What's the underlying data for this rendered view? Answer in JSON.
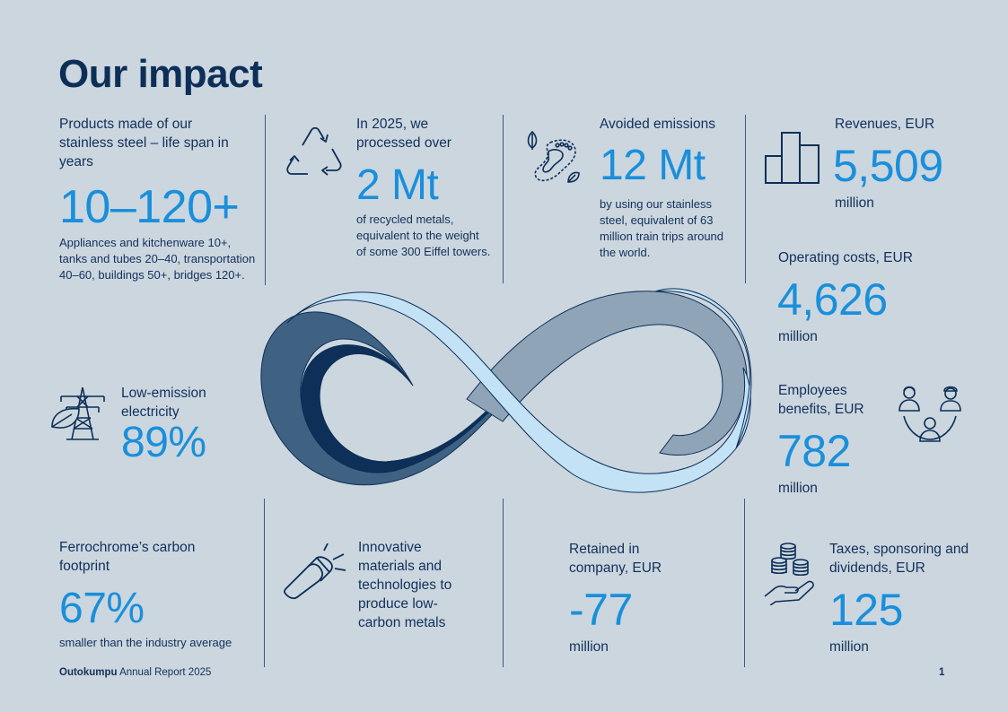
{
  "page": {
    "title": "Our impact"
  },
  "products": {
    "label": "Products made of our stainless steel – life span in years",
    "value": "10–120+",
    "desc": "Appliances and kitchenware 10+, tanks and tubes 20–40, transportation 40–60, buildings 50+, bridges 120+."
  },
  "recycled": {
    "label": "In 2025, we processed over",
    "value": "2 Mt",
    "desc": "of recycled metals, equivalent to the weight of some 300 Eiffel towers.",
    "icon": "recycle-icon"
  },
  "emissions": {
    "label": "Avoided emissions",
    "value": "12 Mt",
    "desc": "by using our stainless steel, equivalent of 63 million train trips around the world.",
    "icon": "footprint-icon"
  },
  "revenues": {
    "label": "Revenues, EUR",
    "value": "5,509",
    "unit": "million",
    "icon": "bar-chart-icon"
  },
  "operating": {
    "label": "Operating costs, EUR",
    "value": "4,626",
    "unit": "million"
  },
  "employees": {
    "label": "Employees benefits, EUR",
    "value": "782",
    "unit": "million",
    "icon": "people-icon"
  },
  "electricity": {
    "label": "Low-emission electricity",
    "value": "89%",
    "icon": "power-pylon-icon"
  },
  "ferrochrome": {
    "label": "Ferrochrome’s carbon footprint",
    "value": "67%",
    "desc": "smaller than the industry average"
  },
  "innovative": {
    "label": "Innovative materials and technologies to produce low-carbon metals",
    "icon": "flashlight-icon"
  },
  "retained": {
    "label": "Retained in company, EUR",
    "value": "-77",
    "unit": "million"
  },
  "taxes": {
    "label": "Taxes, sponsoring and dividends, EUR",
    "value": "125",
    "unit": "million",
    "icon": "coins-hand-icon"
  },
  "footer": {
    "brand": "Outokumpu",
    "text": " Annual Report 2025",
    "page": "1"
  },
  "colors": {
    "background": "#cbd6df",
    "accent": "#1a8fdb",
    "navy": "#0d2f57"
  }
}
